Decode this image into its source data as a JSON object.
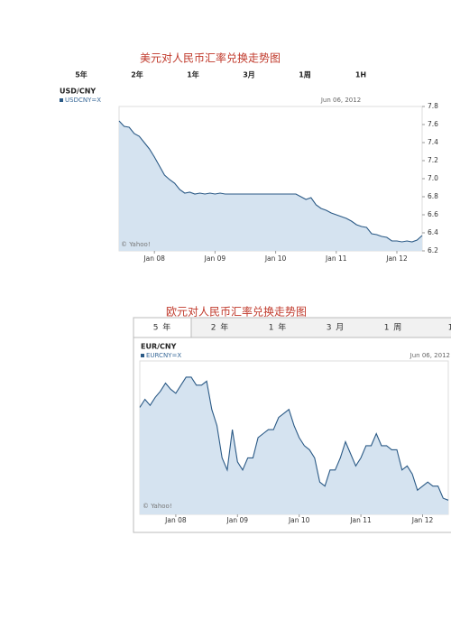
{
  "chart_data": [
    {
      "type": "area",
      "title": "美元对人民币汇率兑换走势图",
      "tabs": [
        "5年",
        "2年",
        "1年",
        "3月",
        "1周",
        "1H"
      ],
      "subtitle": "USD/CNY",
      "annotations": [
        "Jun 06, 2012",
        "© Yahoo!"
      ],
      "x": [
        "2007-06",
        "2007-07",
        "2007-08",
        "2007-09",
        "2007-10",
        "2007-11",
        "2007-12",
        "2008-01",
        "2008-02",
        "2008-03",
        "2008-04",
        "2008-05",
        "2008-06",
        "2008-07",
        "2008-08",
        "2008-09",
        "2008-10",
        "2008-11",
        "2008-12",
        "2009-01",
        "2009-02",
        "2009-03",
        "2009-04",
        "2009-05",
        "2009-06",
        "2009-07",
        "2009-08",
        "2009-09",
        "2009-10",
        "2009-11",
        "2009-12",
        "2010-01",
        "2010-02",
        "2010-03",
        "2010-04",
        "2010-05",
        "2010-06",
        "2010-07",
        "2010-08",
        "2010-09",
        "2010-10",
        "2010-11",
        "2010-12",
        "2011-01",
        "2011-02",
        "2011-03",
        "2011-04",
        "2011-05",
        "2011-06",
        "2011-07",
        "2011-08",
        "2011-09",
        "2011-10",
        "2011-11",
        "2011-12",
        "2012-01",
        "2012-02",
        "2012-03",
        "2012-04",
        "2012-05",
        "2012-06"
      ],
      "series": [
        {
          "name": "USDCNY=X",
          "color": "#2b5a86",
          "values": [
            7.64,
            7.58,
            7.57,
            7.5,
            7.47,
            7.4,
            7.33,
            7.24,
            7.14,
            7.04,
            6.99,
            6.95,
            6.88,
            6.84,
            6.85,
            6.83,
            6.84,
            6.83,
            6.84,
            6.83,
            6.84,
            6.83,
            6.83,
            6.83,
            6.83,
            6.83,
            6.83,
            6.83,
            6.83,
            6.83,
            6.83,
            6.83,
            6.83,
            6.83,
            6.83,
            6.83,
            6.8,
            6.77,
            6.79,
            6.71,
            6.67,
            6.65,
            6.62,
            6.6,
            6.58,
            6.56,
            6.53,
            6.49,
            6.47,
            6.46,
            6.39,
            6.38,
            6.36,
            6.35,
            6.31,
            6.31,
            6.3,
            6.31,
            6.3,
            6.32,
            6.37
          ]
        }
      ],
      "xlim": [
        "2007-06",
        "2012-06"
      ],
      "xticks": [
        {
          "value": "2008-01",
          "label": "Jan 08"
        },
        {
          "value": "2009-01",
          "label": "Jan 09"
        },
        {
          "value": "2010-01",
          "label": "Jan 10"
        },
        {
          "value": "2011-01",
          "label": "Jan 11"
        },
        {
          "value": "2012-01",
          "label": "Jan 12"
        }
      ],
      "ylim": [
        6.2,
        7.8
      ],
      "yticks": [
        6.2,
        6.4,
        6.6,
        6.8,
        {
          "value": 7,
          "label": "7.0"
        },
        7.2,
        7.4,
        7.6,
        7.8
      ],
      "fill": "#d5e3f0"
    },
    {
      "type": "area",
      "title": "欧元对人民币汇率兑换走势图",
      "tabs": [
        "5 年",
        "2 年",
        "1 年",
        "3 月",
        "1 周",
        "1"
      ],
      "subtitle": "EUR/CNY",
      "annotations": [
        "Jun 06, 2012",
        "© Yahoo!"
      ],
      "x": [
        "2007-06",
        "2007-07",
        "2007-08",
        "2007-09",
        "2007-10",
        "2007-11",
        "2007-12",
        "2008-01",
        "2008-02",
        "2008-03",
        "2008-04",
        "2008-05",
        "2008-06",
        "2008-07",
        "2008-08",
        "2008-09",
        "2008-10",
        "2008-11",
        "2008-12",
        "2009-01",
        "2009-02",
        "2009-03",
        "2009-04",
        "2009-05",
        "2009-06",
        "2009-07",
        "2009-08",
        "2009-09",
        "2009-10",
        "2009-11",
        "2009-12",
        "2010-01",
        "2010-02",
        "2010-03",
        "2010-04",
        "2010-05",
        "2010-06",
        "2010-07",
        "2010-08",
        "2010-09",
        "2010-10",
        "2010-11",
        "2010-12",
        "2011-01",
        "2011-02",
        "2011-03",
        "2011-04",
        "2011-05",
        "2011-06",
        "2011-07",
        "2011-08",
        "2011-09",
        "2011-10",
        "2011-11",
        "2011-12",
        "2012-01",
        "2012-02",
        "2012-03",
        "2012-04",
        "2012-05",
        "2012-06"
      ],
      "series": [
        {
          "name": "EURCNY=X",
          "color": "#2b5a86",
          "values": [
            10.25,
            10.45,
            10.3,
            10.5,
            10.65,
            10.85,
            10.7,
            10.6,
            10.8,
            11.0,
            11.0,
            10.8,
            10.8,
            10.9,
            10.2,
            9.8,
            9.0,
            8.7,
            9.7,
            8.9,
            8.7,
            9.0,
            9.0,
            9.5,
            9.6,
            9.7,
            9.7,
            10.0,
            10.1,
            10.2,
            9.8,
            9.5,
            9.3,
            9.2,
            9.0,
            8.4,
            8.3,
            8.7,
            8.7,
            9.0,
            9.4,
            9.1,
            8.8,
            9.0,
            9.3,
            9.3,
            9.6,
            9.3,
            9.3,
            9.2,
            9.2,
            8.7,
            8.8,
            8.6,
            8.2,
            8.3,
            8.4,
            8.3,
            8.3,
            8.0,
            7.95
          ]
        }
      ],
      "xlim": [
        "2007-06",
        "2012-06"
      ],
      "xticks": [
        {
          "value": "2008-01",
          "label": "Jan 08"
        },
        {
          "value": "2009-01",
          "label": "Jan 09"
        },
        {
          "value": "2010-01",
          "label": "Jan 10"
        },
        {
          "value": "2011-01",
          "label": "Jan 11"
        },
        {
          "value": "2012-01",
          "label": "Jan 12"
        }
      ],
      "ylim": [
        7.6,
        11.4
      ],
      "fill": "#d5e3f0"
    }
  ]
}
